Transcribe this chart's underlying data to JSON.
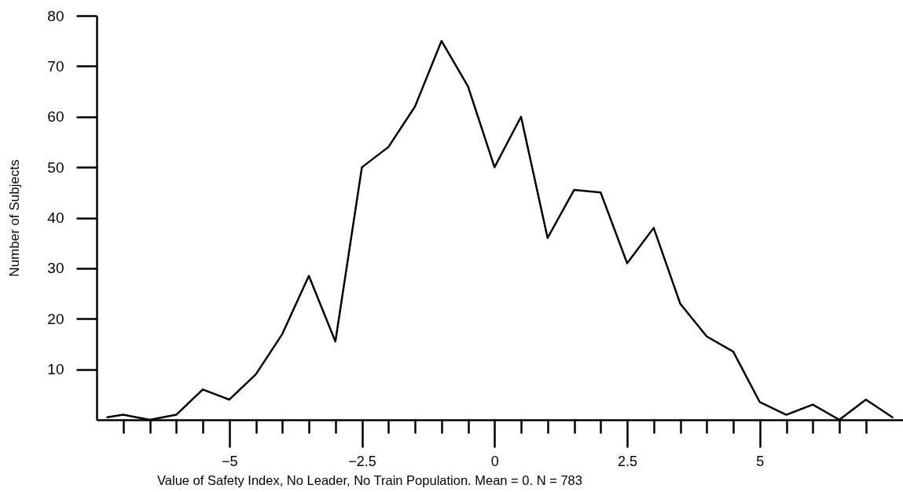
{
  "chart_data": {
    "type": "line",
    "xlabel": "Value of Safety Index, No Leader, No Train Population. Mean = 0. N = 783",
    "ylabel": "Number of Subjects",
    "x": [
      -7.3,
      -7,
      -6.5,
      -6,
      -5.5,
      -5,
      -4.5,
      -4,
      -3.5,
      -3,
      -2.5,
      -2,
      -1.5,
      -1,
      -0.5,
      0,
      0.5,
      1,
      1.5,
      2,
      2.5,
      3,
      3.5,
      4,
      4.5,
      5,
      5.5,
      6,
      6.5,
      7,
      7.5
    ],
    "series": [
      {
        "color": "#000000",
        "values": [
          0.5,
          1,
          0,
          1,
          6,
          4,
          9,
          17,
          28.5,
          15.5,
          50,
          54,
          62,
          75,
          66,
          50,
          60,
          36,
          45.5,
          45,
          31,
          38,
          23,
          16.5,
          13.5,
          3.5,
          1,
          3,
          0,
          4,
          0.5
        ]
      }
    ],
    "xlim": [
      -7.5,
      7.7
    ],
    "xticks": [
      {
        "value": -7,
        "label": null
      },
      {
        "value": -6.5,
        "label": null
      },
      {
        "value": -6,
        "label": null
      },
      {
        "value": -5.5,
        "label": null
      },
      -5,
      {
        "value": -4.5,
        "label": null
      },
      {
        "value": -4,
        "label": null
      },
      {
        "value": -3.5,
        "label": null
      },
      {
        "value": -3,
        "label": null
      },
      -2.5,
      {
        "value": -2,
        "label": null
      },
      {
        "value": -1.5,
        "label": null
      },
      {
        "value": -1,
        "label": null
      },
      {
        "value": -0.5,
        "label": null
      },
      0,
      {
        "value": 0.5,
        "label": null
      },
      {
        "value": 1,
        "label": null
      },
      {
        "value": 1.5,
        "label": null
      },
      {
        "value": 2,
        "label": null
      },
      2.5,
      {
        "value": 3,
        "label": null
      },
      {
        "value": 3.5,
        "label": null
      },
      {
        "value": 4,
        "label": null
      },
      {
        "value": 4.5,
        "label": null
      },
      5,
      {
        "value": 5.5,
        "label": null
      },
      {
        "value": 6,
        "label": null
      },
      {
        "value": 6.5,
        "label": null
      },
      {
        "value": 7,
        "label": null
      }
    ],
    "ylim": [
      0,
      80
    ],
    "yticks": [
      10,
      20,
      30,
      40,
      50,
      60,
      70,
      80
    ]
  }
}
